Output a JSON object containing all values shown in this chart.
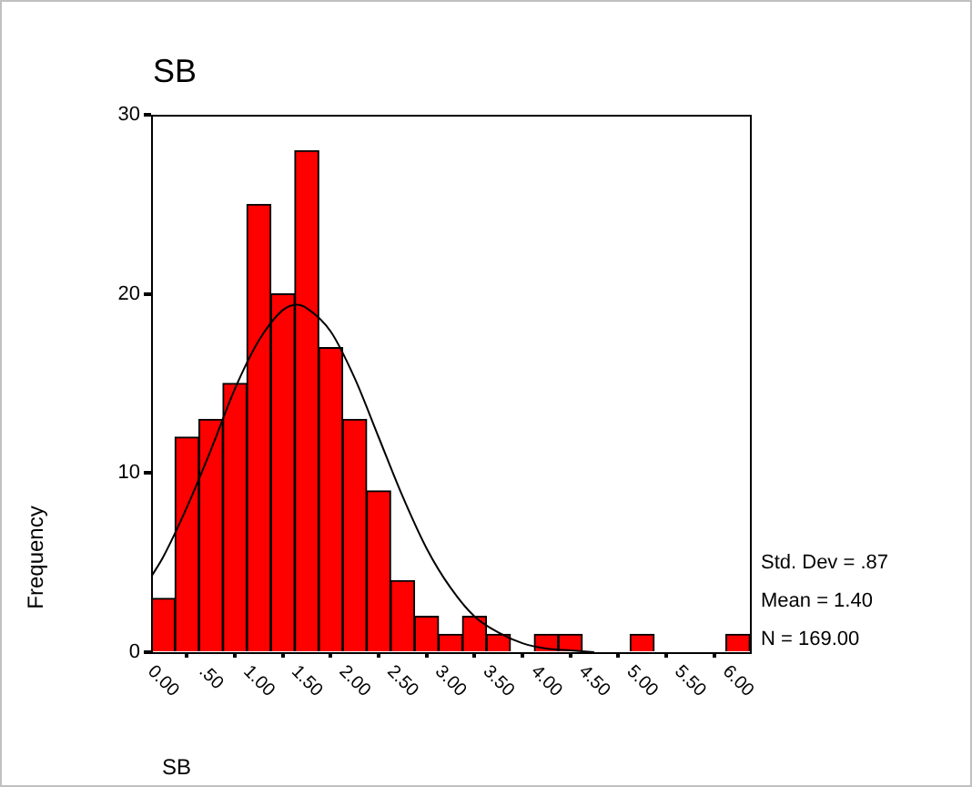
{
  "chart_data": {
    "type": "histogram",
    "title": "SB",
    "xlabel": "SB",
    "ylabel": "Frequency",
    "bins": [
      -0.125,
      0.125,
      0.375,
      0.625,
      0.875,
      1.125,
      1.375,
      1.625,
      1.875,
      2.125,
      2.375,
      2.625,
      2.875,
      3.125,
      3.375,
      3.625,
      3.875,
      4.125,
      4.375,
      4.625,
      4.875,
      5.125,
      5.375,
      5.625,
      5.875,
      6.125
    ],
    "values": [
      3,
      12,
      13,
      15,
      25,
      20,
      28,
      17,
      13,
      9,
      4,
      2,
      1,
      2,
      1,
      0,
      1,
      1,
      0,
      0,
      1,
      0,
      0,
      0,
      1
    ],
    "color": "#ff0000",
    "series": [
      {
        "type": "line",
        "color": "#000000",
        "x": [
          -0.125,
          0,
          0.25,
          0.5,
          0.75,
          1,
          1.25,
          1.4,
          1.5,
          1.75,
          2,
          2.25,
          2.5,
          2.75,
          3,
          3.25,
          3.5,
          3.75,
          4,
          4.25,
          4.5
        ],
        "values": [
          4.2,
          5.3,
          8.1,
          11.3,
          14.7,
          17.4,
          19.1,
          19.4,
          19.2,
          17.9,
          15.3,
          12,
          8.7,
          5.8,
          3.6,
          2,
          1.1,
          0.5,
          0.2,
          0.1,
          0
        ]
      }
    ],
    "xlim": [
      -0.125,
      6.125
    ],
    "xticks": [
      {
        "value": 0,
        "label": "0.00"
      },
      {
        "value": 0.5,
        "label": ".50"
      },
      {
        "value": 1,
        "label": "1.00"
      },
      {
        "value": 1.5,
        "label": "1.50"
      },
      {
        "value": 2,
        "label": "2.00"
      },
      {
        "value": 2.5,
        "label": "2.50"
      },
      {
        "value": 3,
        "label": "3.00"
      },
      {
        "value": 3.5,
        "label": "3.50"
      },
      {
        "value": 4,
        "label": "4.00"
      },
      {
        "value": 4.5,
        "label": "4.50"
      },
      {
        "value": 5,
        "label": "5.00"
      },
      {
        "value": 5.5,
        "label": "5.50"
      },
      {
        "value": 6,
        "label": "6.00"
      }
    ],
    "ylim": [
      0,
      30
    ],
    "yticks": [
      0,
      10,
      20,
      30
    ],
    "grid": false,
    "legend": false,
    "marker": "none",
    "annotations": [
      "Std. Dev = .87",
      "Mean = 1.40",
      "N = 169.00"
    ]
  }
}
